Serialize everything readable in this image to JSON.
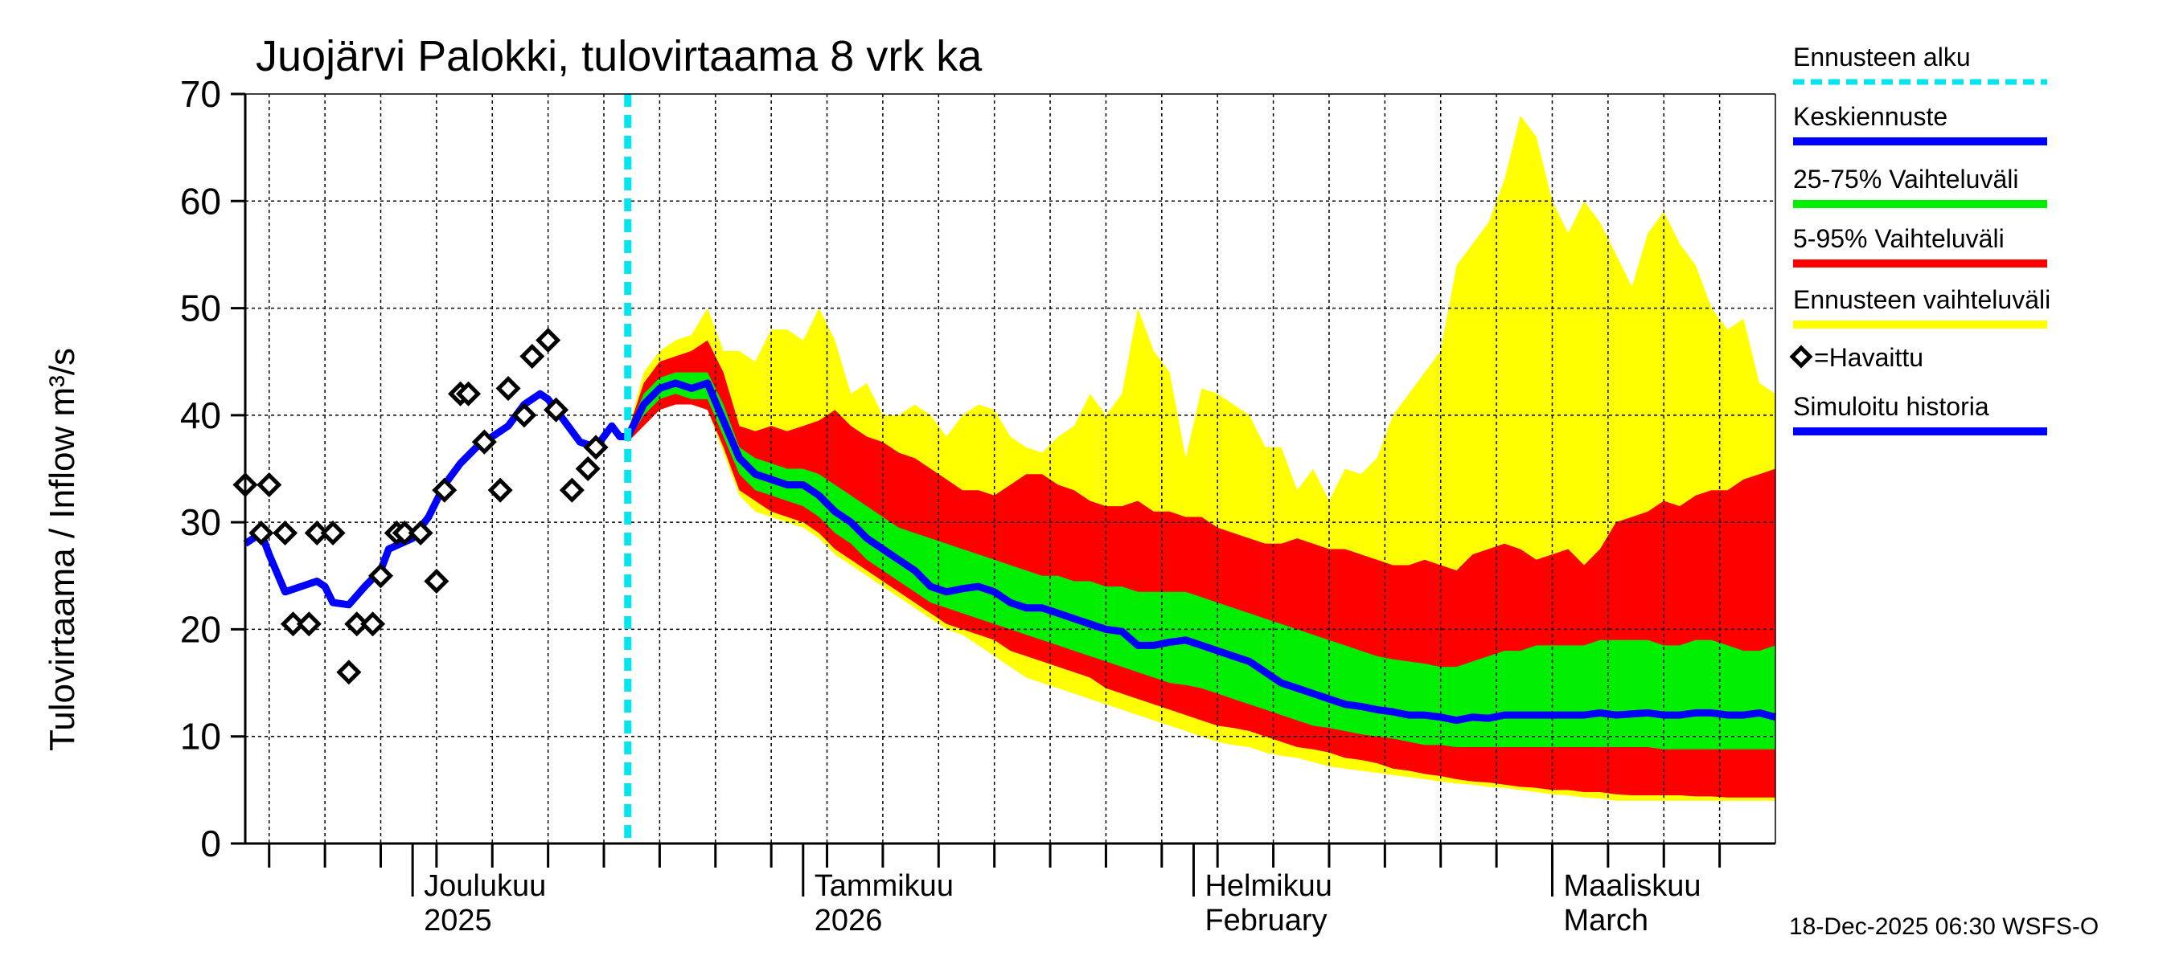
{
  "chart_data": {
    "type": "area",
    "title": "Juojärvi Palokki, tulovirtaama  8 vrk ka",
    "ylabel": "Tulovirtaama / Inflow    m³/s",
    "xlabel": "",
    "ylim": [
      0,
      70
    ],
    "yticks": [
      0,
      10,
      20,
      30,
      40,
      50,
      60,
      70
    ],
    "x_domain": [
      0,
      192
    ],
    "forecast_start_day": 48,
    "month_labels": [
      {
        "day": 21,
        "line1": "Joulukuu",
        "line2": "2025"
      },
      {
        "day": 70,
        "line1": "Tammikuu",
        "line2": "2026"
      },
      {
        "day": 119,
        "line1": "Helmikuu",
        "line2": "February"
      },
      {
        "day": 164,
        "line1": "Maaliskuu",
        "line2": "March"
      }
    ],
    "month_boundaries": [
      21,
      70,
      119,
      164
    ],
    "week_ticks": [
      3,
      10,
      17,
      24,
      31,
      38,
      45,
      52,
      59,
      66,
      73,
      80,
      87,
      94,
      101,
      108,
      115,
      122,
      129,
      136,
      143,
      150,
      157,
      164,
      171,
      178,
      185
    ],
    "legend": [
      {
        "label": "Ennusteen alku",
        "color": "#00e5ee",
        "style": "dashed"
      },
      {
        "label": "Keskiennuste",
        "color": "#0000ff",
        "style": "solid"
      },
      {
        "label": "25-75% Vaihteluväli",
        "color": "#00ee00",
        "style": "solid"
      },
      {
        "label": "5-95% Vaihteluväli",
        "color": "#ff0000",
        "style": "solid"
      },
      {
        "label": "Ennusteen vaihteluväli",
        "color": "#ffff00",
        "style": "solid"
      },
      {
        "label": "=Havaittu",
        "color": "#000000",
        "style": "marker"
      },
      {
        "label": "Simuloitu historia",
        "color": "#0000ff",
        "style": "solid"
      }
    ],
    "observed": [
      [
        0,
        33.5
      ],
      [
        2,
        29
      ],
      [
        3,
        33.5
      ],
      [
        5,
        29
      ],
      [
        6,
        20.5
      ],
      [
        8,
        20.5
      ],
      [
        9,
        29
      ],
      [
        11,
        29
      ],
      [
        13,
        16
      ],
      [
        14,
        20.5
      ],
      [
        16,
        20.5
      ],
      [
        17,
        25
      ],
      [
        19,
        29
      ],
      [
        20,
        29
      ],
      [
        22,
        29
      ],
      [
        24,
        24.5
      ],
      [
        25,
        33
      ],
      [
        27,
        42
      ],
      [
        28,
        42
      ],
      [
        30,
        37.5
      ],
      [
        32,
        33
      ],
      [
        33,
        42.5
      ],
      [
        35,
        40
      ],
      [
        36,
        45.5
      ],
      [
        38,
        47
      ],
      [
        39,
        40.5
      ],
      [
        41,
        33
      ],
      [
        43,
        35
      ],
      [
        44,
        37
      ]
    ],
    "simulated_history": [
      [
        0,
        28
      ],
      [
        2,
        29
      ],
      [
        3,
        27
      ],
      [
        5,
        23.5
      ],
      [
        7,
        24
      ],
      [
        9,
        24.5
      ],
      [
        10,
        24
      ],
      [
        11,
        22.5
      ],
      [
        13,
        22.3
      ],
      [
        15,
        24
      ],
      [
        17,
        25.5
      ],
      [
        18,
        27.5
      ],
      [
        21,
        28.5
      ],
      [
        23,
        30.5
      ],
      [
        25,
        33.5
      ],
      [
        27,
        35.5
      ],
      [
        29,
        37
      ],
      [
        31,
        38
      ],
      [
        33,
        39
      ],
      [
        35,
        41
      ],
      [
        37,
        42
      ],
      [
        38,
        41.5
      ],
      [
        40,
        39.5
      ],
      [
        42,
        37.5
      ],
      [
        44,
        37
      ],
      [
        46,
        39
      ],
      [
        47,
        38
      ],
      [
        48,
        38
      ]
    ],
    "series": [
      {
        "name": "Keskiennuste",
        "x": [
          48,
          50,
          52,
          54,
          56,
          58,
          60,
          62,
          64,
          66,
          68,
          70,
          72,
          74,
          76,
          78,
          80,
          82,
          84,
          86,
          88,
          90,
          92,
          94,
          96,
          98,
          100,
          102,
          104,
          106,
          108,
          110,
          112,
          114,
          116,
          118,
          120,
          122,
          124,
          126,
          128,
          130,
          132,
          134,
          136,
          138,
          140,
          142,
          144,
          146,
          148,
          150,
          152,
          154,
          156,
          158,
          160,
          162,
          164,
          166,
          168,
          170,
          172,
          174,
          176,
          178,
          180,
          182,
          184,
          186,
          188,
          190,
          192
        ],
        "values": [
          38,
          41,
          42.5,
          43,
          42.5,
          43,
          39.5,
          36,
          34.5,
          34,
          33.5,
          33.5,
          32.5,
          31,
          30,
          28.5,
          27.5,
          26.5,
          25.5,
          24,
          23.5,
          23.8,
          24,
          23.5,
          22.5,
          22,
          22,
          21.5,
          21,
          20.5,
          20,
          19.8,
          18.5,
          18.5,
          18.8,
          19,
          18.5,
          18,
          17.5,
          17,
          16,
          15,
          14.5,
          14,
          13.5,
          13,
          12.8,
          12.5,
          12.3,
          12,
          12,
          11.8,
          11.5,
          11.8,
          11.7,
          12,
          12,
          12,
          12,
          12,
          12,
          12.2,
          12,
          12.1,
          12.2,
          12,
          12,
          12.2,
          12.2,
          12,
          12,
          12.2,
          11.8
        ]
      },
      {
        "name": "25-75% Vaihteluväli",
        "x": [
          48,
          50,
          52,
          54,
          56,
          58,
          60,
          62,
          64,
          66,
          68,
          70,
          72,
          74,
          76,
          78,
          80,
          82,
          84,
          86,
          88,
          90,
          92,
          94,
          96,
          98,
          100,
          102,
          104,
          106,
          108,
          110,
          112,
          114,
          116,
          118,
          120,
          122,
          124,
          126,
          128,
          130,
          132,
          134,
          136,
          138,
          140,
          142,
          144,
          146,
          148,
          150,
          152,
          154,
          156,
          158,
          160,
          162,
          164,
          166,
          168,
          170,
          172,
          174,
          176,
          178,
          180,
          182,
          184,
          186,
          188,
          190,
          192
        ],
        "upper": [
          38.5,
          42,
          43.5,
          44,
          44,
          44,
          41,
          37,
          36,
          35.5,
          35,
          35,
          34.5,
          33.5,
          32.5,
          31.5,
          30.5,
          29.5,
          29,
          28.5,
          28,
          27.5,
          27,
          26.5,
          26,
          25.5,
          25,
          25,
          24.5,
          24.5,
          24,
          24,
          23.5,
          23.5,
          23.5,
          23.5,
          23,
          22.5,
          22,
          21.5,
          21,
          20.5,
          20,
          19.5,
          19,
          18.5,
          18,
          17.5,
          17.2,
          17,
          16.8,
          16.5,
          16.5,
          17,
          17.5,
          18,
          18,
          18.5,
          18.5,
          18.5,
          18.5,
          19,
          19,
          19,
          19,
          18.5,
          18.5,
          19,
          19,
          18.5,
          18,
          18,
          18.5
        ],
        "lower": [
          37.5,
          40,
          41.5,
          42,
          41.5,
          41.5,
          38,
          34.5,
          33,
          32.5,
          32,
          31.5,
          30.5,
          29,
          28,
          26.5,
          25.5,
          24.5,
          23.5,
          22.5,
          22,
          21.5,
          21,
          20.5,
          20,
          19.5,
          19,
          18.5,
          18,
          17.5,
          17,
          16.5,
          16,
          15.5,
          15,
          14.8,
          14.5,
          14,
          13.5,
          13,
          12.5,
          12,
          11.5,
          11,
          10.8,
          10.5,
          10.2,
          10,
          9.8,
          9.5,
          9.2,
          9.2,
          9,
          9,
          9,
          9,
          9,
          9,
          9,
          9,
          9,
          9,
          9,
          9,
          9,
          8.8,
          8.8,
          8.8,
          8.8,
          8.8,
          8.8,
          8.8,
          8.8
        ]
      },
      {
        "name": "5-95% Vaihteluväli",
        "x": [
          48,
          50,
          52,
          54,
          56,
          58,
          60,
          62,
          64,
          66,
          68,
          70,
          72,
          74,
          76,
          78,
          80,
          82,
          84,
          86,
          88,
          90,
          92,
          94,
          96,
          98,
          100,
          102,
          104,
          106,
          108,
          110,
          112,
          114,
          116,
          118,
          120,
          122,
          124,
          126,
          128,
          130,
          132,
          134,
          136,
          138,
          140,
          142,
          144,
          146,
          148,
          150,
          152,
          154,
          156,
          158,
          160,
          162,
          164,
          166,
          168,
          170,
          172,
          174,
          176,
          178,
          180,
          182,
          184,
          186,
          188,
          190,
          192
        ],
        "upper": [
          38.5,
          43,
          45,
          45.5,
          46,
          47,
          44,
          39,
          38.5,
          39,
          38.5,
          39,
          39.5,
          40.5,
          39,
          38,
          37.5,
          36.5,
          36,
          35,
          34,
          33,
          33,
          32.5,
          33.5,
          34.5,
          34.5,
          33.5,
          33,
          32,
          31.5,
          31.5,
          32,
          31,
          31,
          30.5,
          30.5,
          29.5,
          29,
          28.5,
          28,
          28,
          28.5,
          28,
          27.5,
          27.5,
          27,
          26.5,
          26,
          26,
          26.5,
          26,
          25.5,
          27,
          27.5,
          28,
          27.5,
          26.5,
          27,
          27.5,
          26,
          27.5,
          30,
          30.5,
          31,
          32,
          31.5,
          32.5,
          33,
          33,
          34,
          34.5,
          35
        ],
        "lower": [
          37.5,
          39,
          40.5,
          41,
          41,
          40.5,
          37,
          33,
          32,
          31,
          30.5,
          30,
          29,
          27.5,
          26.5,
          25.5,
          24.5,
          23.5,
          22.5,
          21.5,
          20.5,
          20,
          19.5,
          19,
          18,
          17.5,
          17,
          16.5,
          16,
          15.5,
          14.5,
          14,
          13.5,
          13,
          12.5,
          12,
          11.5,
          11,
          10.8,
          10.5,
          10,
          9.5,
          9,
          8.8,
          8.5,
          8,
          7.8,
          7.5,
          7,
          6.8,
          6.5,
          6.3,
          6,
          5.8,
          5.7,
          5.5,
          5.3,
          5.2,
          5,
          5,
          4.8,
          4.8,
          4.6,
          4.5,
          4.5,
          4.5,
          4.5,
          4.4,
          4.4,
          4.3,
          4.3,
          4.3,
          4.3
        ]
      },
      {
        "name": "Ennusteen vaihteluväli",
        "x": [
          48,
          50,
          52,
          54,
          56,
          58,
          60,
          62,
          64,
          66,
          68,
          70,
          72,
          74,
          76,
          78,
          80,
          82,
          84,
          86,
          88,
          90,
          92,
          94,
          96,
          98,
          100,
          102,
          104,
          106,
          108,
          110,
          112,
          114,
          116,
          118,
          120,
          122,
          124,
          126,
          128,
          130,
          132,
          134,
          136,
          138,
          140,
          142,
          144,
          146,
          148,
          150,
          152,
          154,
          156,
          158,
          160,
          162,
          164,
          166,
          168,
          170,
          172,
          174,
          176,
          178,
          180,
          182,
          184,
          186,
          188,
          190,
          192
        ],
        "upper": [
          38.5,
          44,
          46,
          47,
          47.5,
          50,
          46,
          46,
          45,
          48,
          48,
          47,
          50,
          47,
          42,
          43,
          40,
          40,
          41,
          40,
          38,
          40,
          41,
          40.5,
          38,
          37,
          36.5,
          38,
          39,
          42,
          40,
          42,
          50,
          46,
          44,
          36,
          42.5,
          42,
          41,
          40,
          37,
          37,
          33,
          35,
          32,
          35,
          34.5,
          36,
          40,
          42,
          44,
          46,
          54,
          56,
          58,
          62,
          68,
          66,
          60,
          57,
          60,
          58,
          55,
          52,
          57,
          59,
          56,
          54,
          50,
          48,
          49,
          43,
          42
        ],
        "lower": [
          37.5,
          39,
          40.5,
          41,
          41,
          40.5,
          36.5,
          32.5,
          31,
          30.5,
          30,
          29.5,
          28.5,
          27,
          26,
          25,
          24,
          23,
          22,
          21,
          20,
          19.5,
          18.5,
          17.5,
          16.5,
          15.5,
          15,
          14.5,
          14,
          13.5,
          13,
          12.5,
          12,
          11.5,
          11,
          10.5,
          10,
          9.5,
          9.2,
          9,
          8.5,
          8.2,
          8,
          7.6,
          7.2,
          7,
          6.8,
          6.6,
          6.4,
          6.2,
          6,
          5.8,
          5.6,
          5.5,
          5.3,
          5.2,
          5,
          4.8,
          4.6,
          4.5,
          4.3,
          4.2,
          4,
          4,
          4,
          4,
          4,
          4,
          4,
          4,
          4,
          4,
          4
        ]
      }
    ]
  },
  "footer": "18-Dec-2025 06:30 WSFS-O"
}
